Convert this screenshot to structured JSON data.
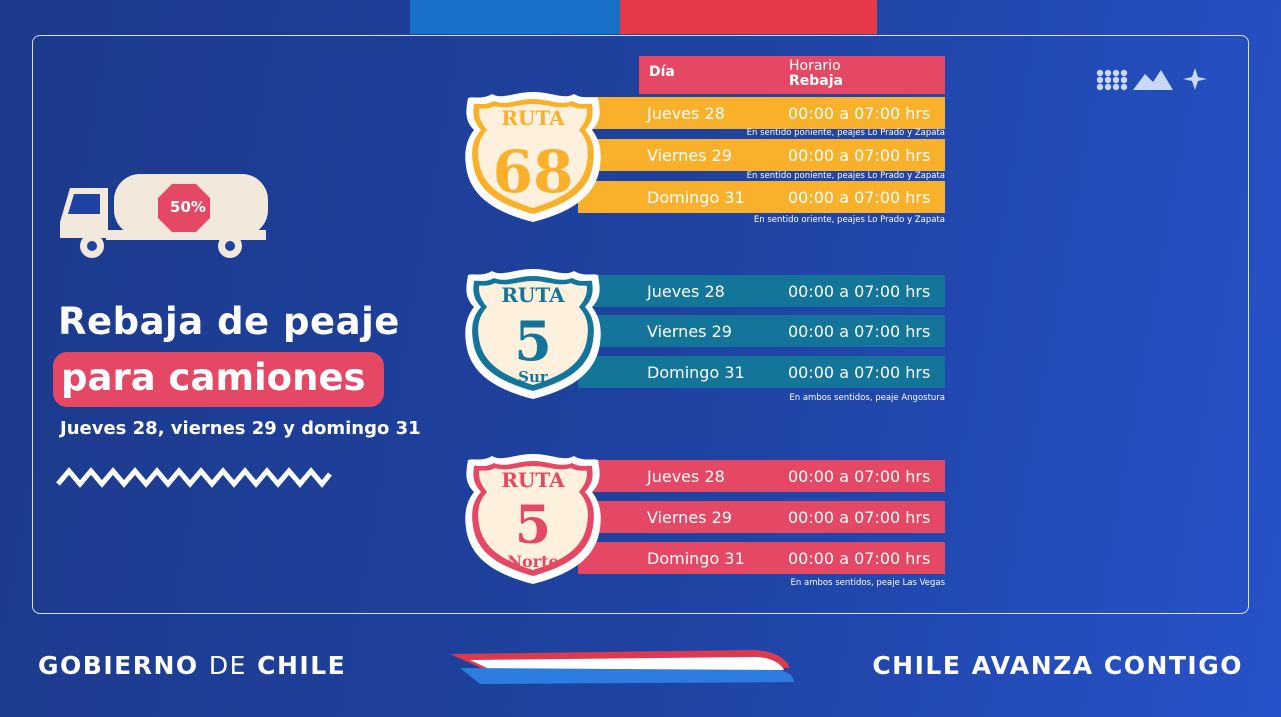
{
  "colors": {
    "background": "#1f43a2",
    "yellow": "#f9b12b",
    "teal": "#13759a",
    "pink": "#e54864",
    "red": "#e63a4b",
    "cream": "#f3e8dc"
  },
  "truck": {
    "badge": "50%",
    "icon": "tanker-truck-icon"
  },
  "title": {
    "line1": "Rebaja de peaje",
    "line2": "para camiones",
    "subtitle": "Jueves 28, viernes 29 y domingo 31"
  },
  "table_header": {
    "dia": "Día",
    "horario": "Horario",
    "rebaja": "Rebaja"
  },
  "routes": [
    {
      "ruta_label": "RUTA",
      "number": "68",
      "suffix": "",
      "rows": [
        {
          "day": "Jueves 28",
          "time": "00:00 a 07:00 hrs",
          "note": "En sentido poniente, peajes Lo Prado y Zapata"
        },
        {
          "day": "Viernes 29",
          "time": "00:00 a 07:00 hrs",
          "note": "En sentido poniente, peajes Lo Prado y Zapata"
        },
        {
          "day": "Domingo 31",
          "time": "00:00 a 07:00 hrs",
          "note": "En sentido oriente, peajes Lo Prado y Zapata"
        }
      ]
    },
    {
      "ruta_label": "RUTA",
      "number": "5",
      "suffix": "Sur",
      "rows": [
        {
          "day": "Jueves 28",
          "time": "00:00 a 07:00 hrs"
        },
        {
          "day": "Viernes 29",
          "time": "00:00 a 07:00 hrs"
        },
        {
          "day": "Domingo 31",
          "time": "00:00 a 07:00 hrs"
        }
      ],
      "note": "En ambos sentidos, peaje Angostura"
    },
    {
      "ruta_label": "RUTA",
      "number": "5",
      "suffix": "Norte",
      "rows": [
        {
          "day": "Jueves 28",
          "time": "00:00 a 07:00 hrs"
        },
        {
          "day": "Viernes 29",
          "time": "00:00 a 07:00 hrs"
        },
        {
          "day": "Domingo 31",
          "time": "00:00 a 07:00 hrs"
        }
      ],
      "note": "En ambos sentidos, peaje Las Vegas"
    }
  ],
  "footer": {
    "left_a": "GOBIERNO",
    "left_b": "DE",
    "left_c": "CHILE",
    "right": "CHILE AVANZA CONTIGO"
  }
}
